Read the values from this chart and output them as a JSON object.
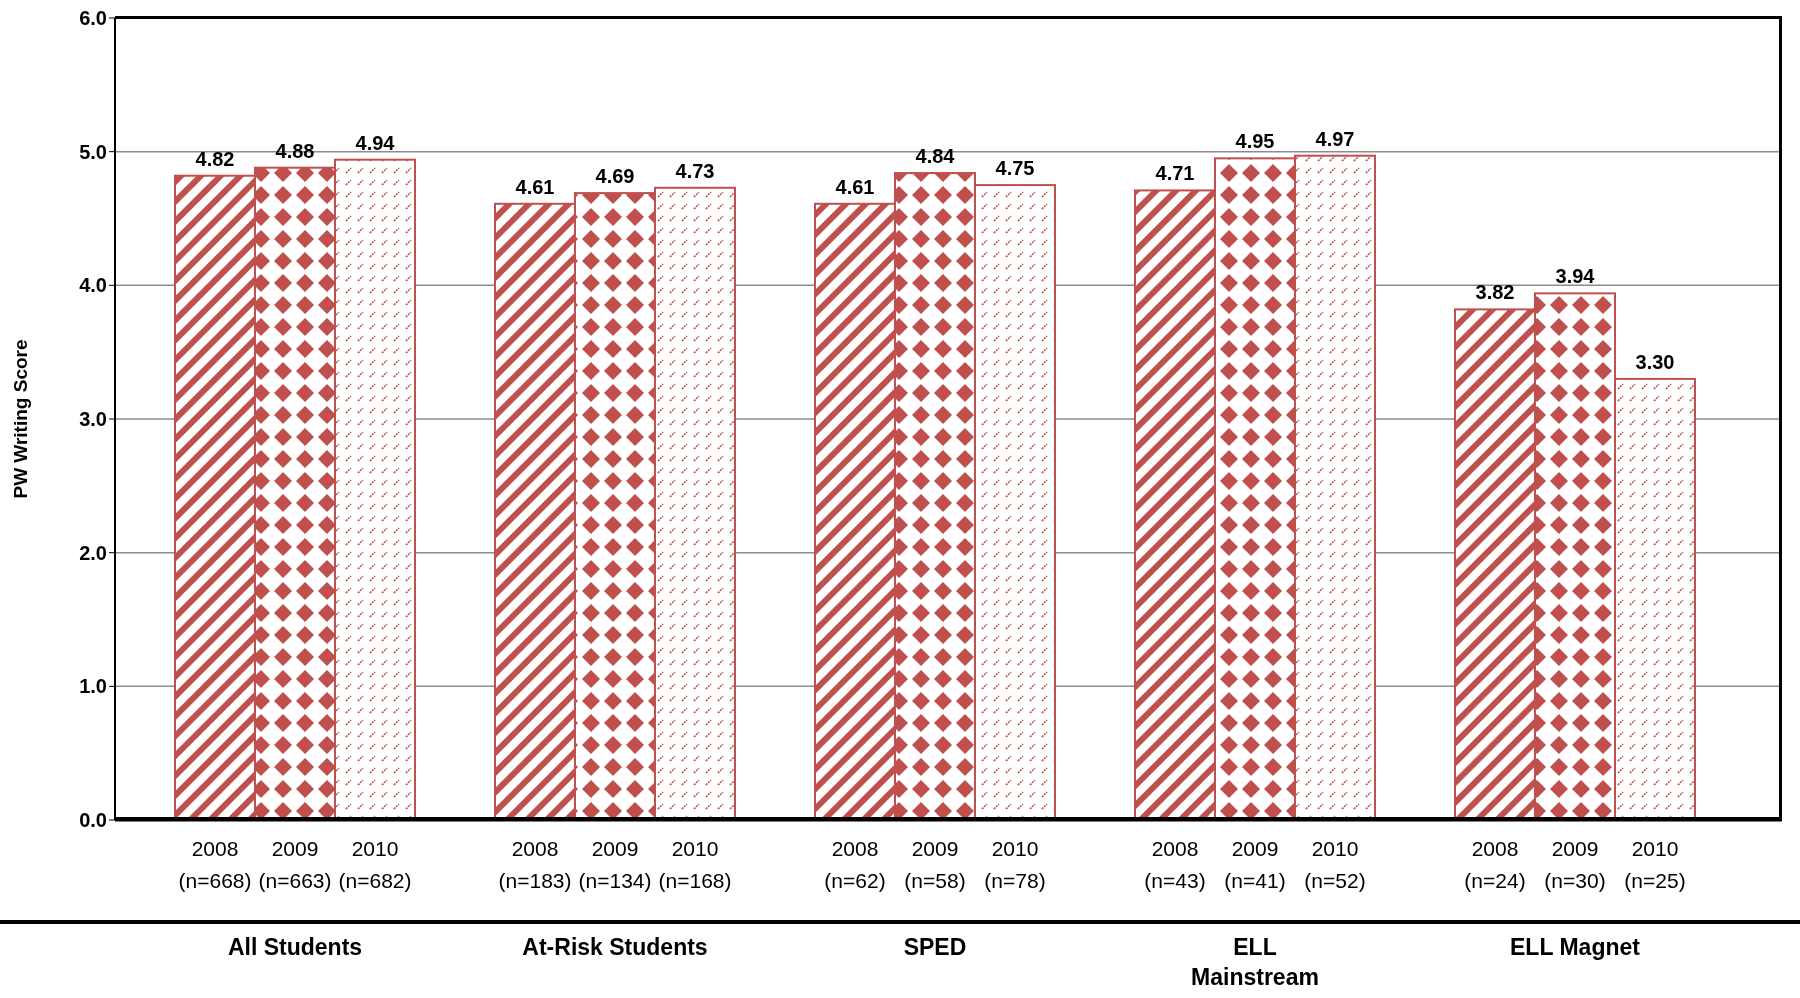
{
  "chart_data": {
    "type": "bar",
    "ylabel": "PW Writing Score",
    "categories": [
      "2008\n(n=668)",
      "2009\n(n=663)",
      "2010\n(n=682)",
      null,
      "2008\n(n=183)",
      "2009\n(n=134)",
      "2010\n(n=168)",
      null,
      "2008\n(n=62)",
      "2009\n(n=58)",
      "2010\n(n=78)",
      null,
      "2008\n(n=43)",
      "2009\n(n=41)",
      "2010\n(n=52)",
      null,
      "2008\n(n=24)",
      "2009\n(n=30)",
      "2010\n(n=25)"
    ],
    "values": [
      4.82,
      4.88,
      4.94,
      null,
      4.61,
      4.69,
      4.73,
      null,
      4.61,
      4.84,
      4.75,
      null,
      4.71,
      4.95,
      4.97,
      null,
      3.82,
      3.94,
      3.3
    ],
    "value_labels": [
      "4.82",
      "4.88",
      "4.94",
      null,
      "4.61",
      "4.69",
      "4.73",
      null,
      "4.61",
      "4.84",
      "4.75",
      null,
      "4.71",
      "4.95",
      "4.97",
      null,
      "3.82",
      "3.94",
      "3.30"
    ],
    "colors": [
      "#c0504d",
      "#c0504d",
      "#c0504d",
      null,
      "#c0504d",
      "#c0504d",
      "#c0504d",
      null,
      "#c0504d",
      "#c0504d",
      "#c0504d",
      null,
      "#c0504d",
      "#c0504d",
      "#c0504d",
      null,
      "#c0504d",
      "#c0504d",
      "#c0504d"
    ],
    "ylim": [
      0,
      6
    ],
    "yticks": [
      {
        "value": 0,
        "label": "0.0"
      },
      {
        "value": 1,
        "label": "1.0"
      },
      {
        "value": 2,
        "label": "2.0"
      },
      {
        "value": 3,
        "label": "3.0"
      },
      {
        "value": 4,
        "label": "4.0"
      },
      {
        "value": 5,
        "label": "5.0"
      },
      {
        "value": 6,
        "label": "6.0"
      }
    ],
    "grid": "y",
    "legend": false,
    "annotations": [
      "All Students",
      "At-Risk Students",
      "SPED",
      "ELL\nMainstream",
      "ELL Magnet"
    ]
  }
}
